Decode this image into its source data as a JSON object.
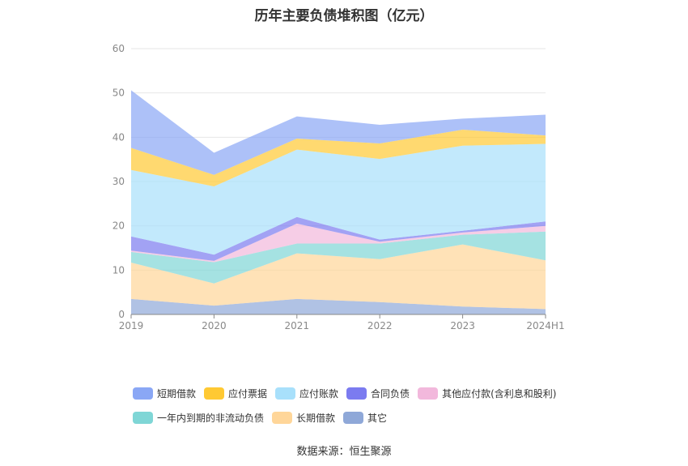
{
  "chart_data": {
    "type": "area",
    "stacked": true,
    "title": "历年主要负债堆积图（亿元）",
    "categories": [
      "2019",
      "2020",
      "2021",
      "2022",
      "2023",
      "2024H1"
    ],
    "ylim": [
      0,
      60
    ],
    "yticks": [
      0,
      10,
      20,
      30,
      40,
      50,
      60
    ],
    "grid": true,
    "legend_position": "bottom",
    "series": [
      {
        "name": "其它",
        "color": "#8fa8d8",
        "values": [
          3.5,
          2.0,
          3.5,
          2.8,
          1.8,
          1.2
        ]
      },
      {
        "name": "长期借款",
        "color": "#ffd699",
        "values": [
          8.2,
          5.0,
          10.3,
          9.7,
          14.0,
          11.0
        ]
      },
      {
        "name": "一年内到期的非流动负债",
        "color": "#7fd6d6",
        "values": [
          2.4,
          4.8,
          2.2,
          3.5,
          2.2,
          6.5
        ]
      },
      {
        "name": "其他应付款(含利息和股利)",
        "color": "#f2b8dc",
        "values": [
          0.3,
          0.3,
          4.5,
          0.4,
          0.5,
          1.3
        ]
      },
      {
        "name": "合同负债",
        "color": "#7b7bf0",
        "values": [
          3.2,
          1.4,
          1.5,
          0.5,
          0.4,
          1.0
        ]
      },
      {
        "name": "应付账款",
        "color": "#a8e0fb",
        "values": [
          15.0,
          15.4,
          15.2,
          18.2,
          19.2,
          17.5
        ]
      },
      {
        "name": "应付票据",
        "color": "#ffc933",
        "values": [
          5.0,
          2.6,
          2.5,
          3.5,
          3.6,
          1.9
        ]
      },
      {
        "name": "短期借款",
        "color": "#8aa7f5",
        "values": [
          13.0,
          5.0,
          5.0,
          4.2,
          2.5,
          4.7
        ]
      }
    ]
  },
  "legend": [
    {
      "label": "短期借款",
      "color": "#8aa7f5"
    },
    {
      "label": "应付票据",
      "color": "#ffc933"
    },
    {
      "label": "应付账款",
      "color": "#a8e0fb"
    },
    {
      "label": "合同负债",
      "color": "#7b7bf0"
    },
    {
      "label": "其他应付款(含利息和股利)",
      "color": "#f2b8dc"
    },
    {
      "label": "一年内到期的非流动负债",
      "color": "#7fd6d6"
    },
    {
      "label": "长期借款",
      "color": "#ffd699"
    },
    {
      "label": "其它",
      "color": "#8fa8d8"
    }
  ],
  "source": "数据来源：恒生聚源"
}
